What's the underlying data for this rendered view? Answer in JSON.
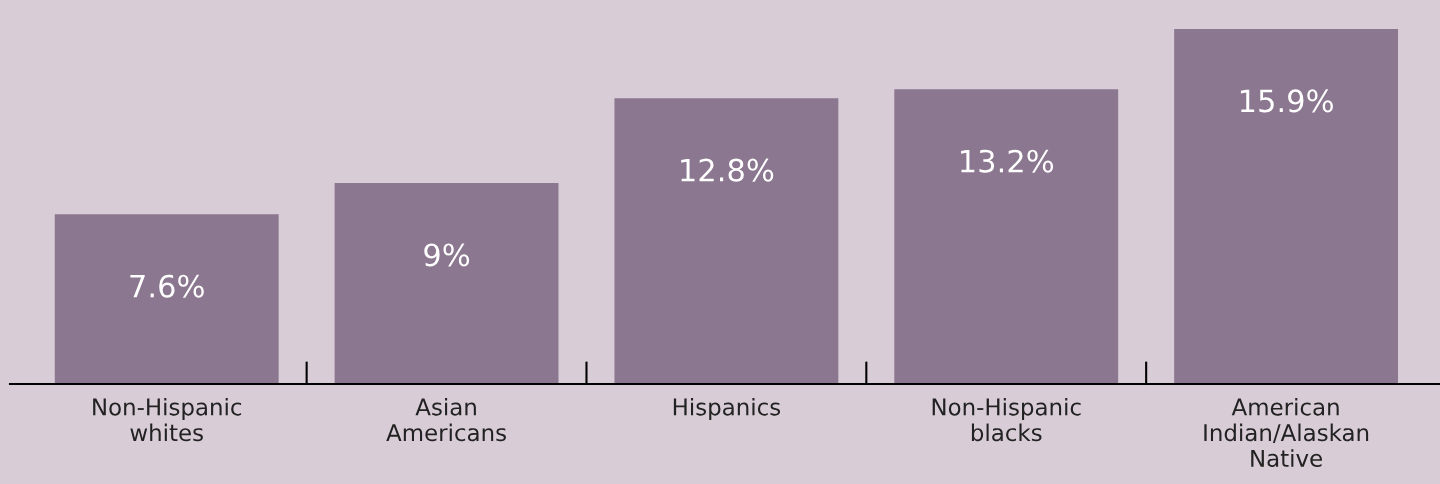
{
  "chart_data": {
    "type": "bar",
    "categories": [
      "Non-Hispanic\nwhites",
      "Asian\nAmericans",
      "Hispanics",
      "Non-Hispanic\nblacks",
      "American\nIndian/Alaskan\nNative"
    ],
    "values": [
      7.6,
      9,
      12.8,
      13.2,
      15.9
    ],
    "value_labels": [
      "7.6%",
      "9%",
      "12.8%",
      "13.2%",
      "15.9%"
    ],
    "color": "#8c7790",
    "grid": false,
    "legend": false
  }
}
